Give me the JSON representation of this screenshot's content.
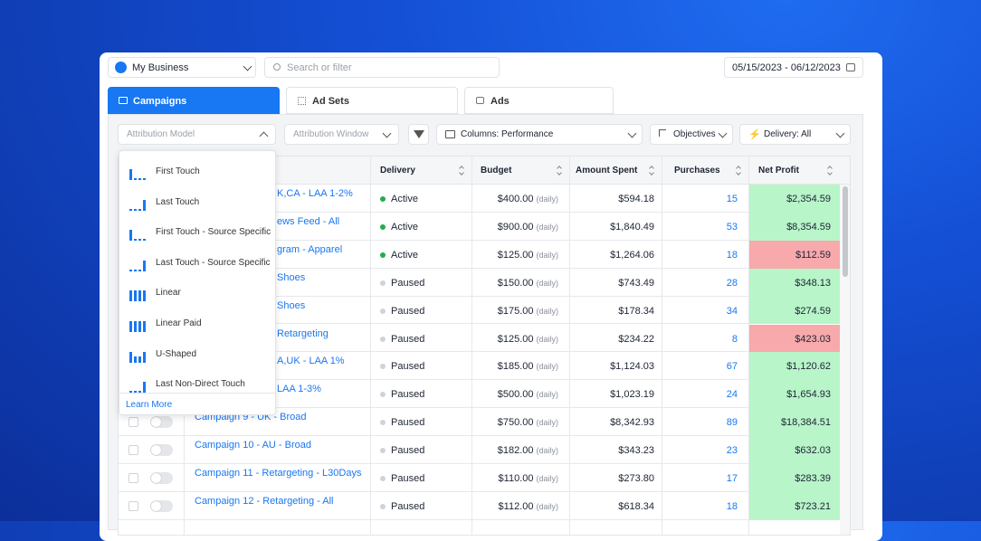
{
  "toolbar": {
    "account": "My Business",
    "search_placeholder": "Search or filter",
    "date_range": "05/15/2023 - 06/12/2023"
  },
  "tabs": [
    "Campaigns",
    "Ad Sets",
    "Ads"
  ],
  "filters": {
    "attribution_model": "Attribution Model",
    "attribution_window": "Attribution Window",
    "columns": "Columns: Performance",
    "objectives": "Objectives",
    "delivery": "Delivery: All"
  },
  "attribution_menu": {
    "items": [
      "First Touch",
      "Last Touch",
      "First Touch - Source Specific",
      "Last Touch - Source Specific",
      "Linear",
      "Linear Paid",
      "U-Shaped",
      "Last Non-Direct Touch"
    ],
    "footer": "Learn More"
  },
  "table": {
    "headers": [
      "Delivery",
      "Budget",
      "Amount Spent",
      "Purchases",
      "Net Profit"
    ],
    "status_colors": {
      "Active": "#1fae4b",
      "Paused": "#cfd3d9"
    },
    "rows": [
      {
        "name": "K,CA - LAA 1-2%",
        "delivery": "Active",
        "budget": "$400.00",
        "budget_note": "(daily)",
        "amount_spent": "$594.18",
        "purchases": "15",
        "net_profit": "$2,354.59",
        "profit_color": "#b8f5c9"
      },
      {
        "name": "ews Feed - All",
        "delivery": "Active",
        "budget": "$900.00",
        "budget_note": "(daily)",
        "amount_spent": "$1,840.49",
        "purchases": "53",
        "net_profit": "$8,354.59",
        "profit_color": "#b8f5c9"
      },
      {
        "name": "gram - Apparel",
        "delivery": "Active",
        "budget": "$125.00",
        "budget_note": "(daily)",
        "amount_spent": "$1,264.06",
        "purchases": "18",
        "net_profit": "$112.59",
        "profit_color": "#f7a9ab"
      },
      {
        "name": "Shoes",
        "delivery": "Paused",
        "budget": "$150.00",
        "budget_note": "(daily)",
        "amount_spent": "$743.49",
        "purchases": "28",
        "net_profit": "$348.13",
        "profit_color": "#b8f5c9"
      },
      {
        "name": "Shoes",
        "delivery": "Paused",
        "budget": "$175.00",
        "budget_note": "(daily)",
        "amount_spent": "$178.34",
        "purchases": "34",
        "net_profit": "$274.59",
        "profit_color": "#b8f5c9"
      },
      {
        "name": "Retargeting",
        "delivery": "Paused",
        "budget": "$125.00",
        "budget_note": "(daily)",
        "amount_spent": "$234.22",
        "purchases": "8",
        "net_profit": "$423.03",
        "profit_color": "#f7a9ab"
      },
      {
        "name": "A,UK - LAA 1%",
        "delivery": "Paused",
        "budget": "$185.00",
        "budget_note": "(daily)",
        "amount_spent": "$1,124.03",
        "purchases": "67",
        "net_profit": "$1,120.62",
        "profit_color": "#b8f5c9"
      },
      {
        "name": "LAA 1-3%",
        "delivery": "Paused",
        "budget": "$500.00",
        "budget_note": "(daily)",
        "amount_spent": "$1,023.19",
        "purchases": "24",
        "net_profit": "$1,654.93",
        "profit_color": "#b8f5c9"
      },
      {
        "name": "Campaign 9 - UK - Broad",
        "delivery": "Paused",
        "budget": "$750.00",
        "budget_note": "(daily)",
        "amount_spent": "$8,342.93",
        "purchases": "89",
        "net_profit": "$18,384.51",
        "profit_color": "#b8f5c9"
      },
      {
        "name": "Campaign 10 - AU - Broad",
        "delivery": "Paused",
        "budget": "$182.00",
        "budget_note": "(daily)",
        "amount_spent": "$343.23",
        "purchases": "23",
        "net_profit": "$632.03",
        "profit_color": "#b8f5c9"
      },
      {
        "name": "Campaign 11 - Retargeting - L30Days",
        "delivery": "Paused",
        "budget": "$110.00",
        "budget_note": "(daily)",
        "amount_spent": "$273.80",
        "purchases": "17",
        "net_profit": "$283.39",
        "profit_color": "#b8f5c9"
      },
      {
        "name": "Campaign 12 - Retargeting - All",
        "delivery": "Paused",
        "budget": "$112.00",
        "budget_note": "(daily)",
        "amount_spent": "$618.34",
        "purchases": "18",
        "net_profit": "$723.21",
        "profit_color": "#b8f5c9"
      }
    ]
  }
}
